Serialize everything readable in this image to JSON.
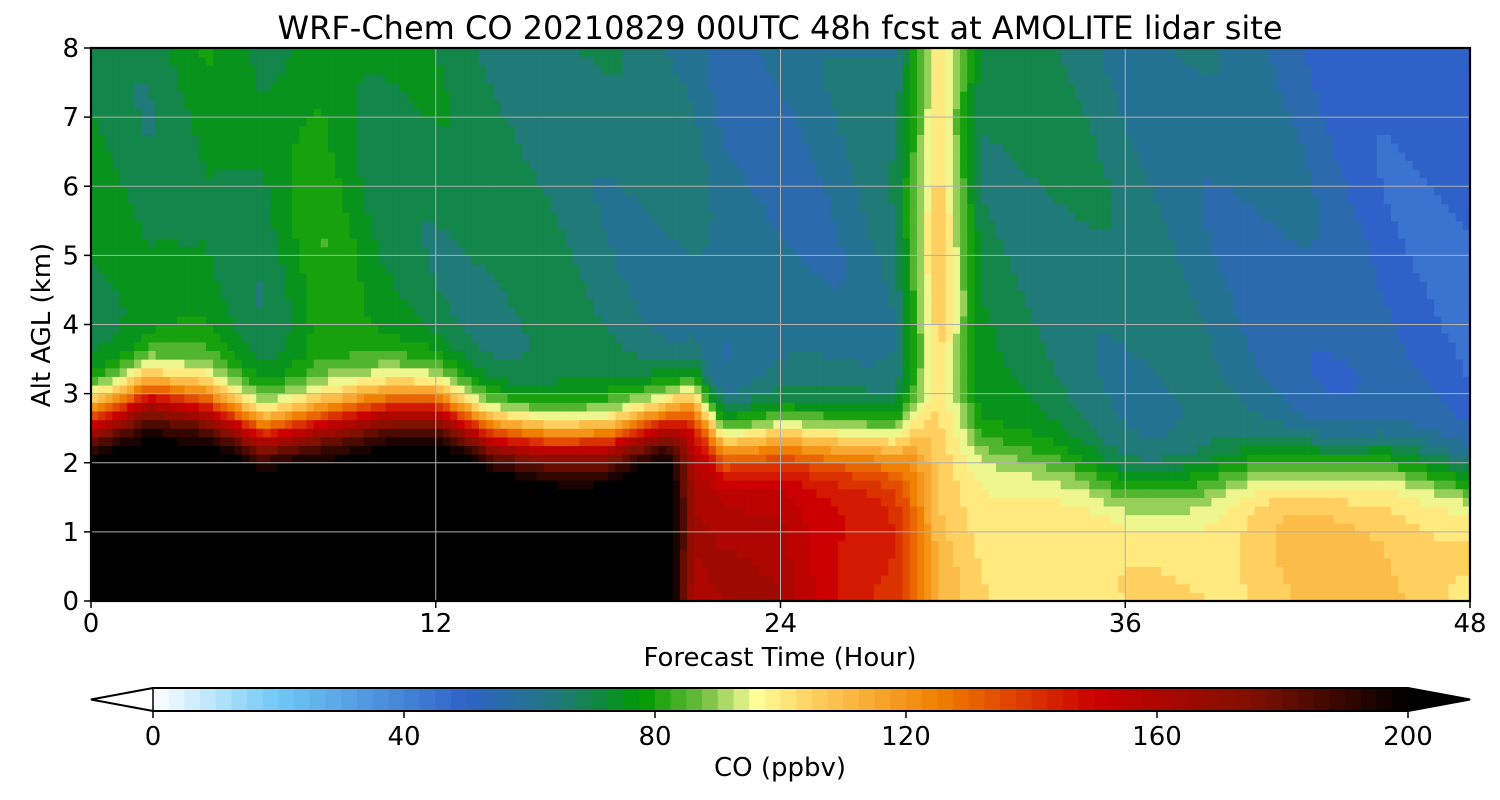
{
  "chart_data": {
    "type": "heatmap",
    "subtype": "filled-contour time-height cross section",
    "title": "WRF-Chem CO  20210829 00UTC 48h fcst at AMOLITE lidar site",
    "xlabel": "Forecast Time (Hour)",
    "ylabel": "Alt AGL (km)",
    "xlim": [
      0,
      48
    ],
    "ylim": [
      0,
      8
    ],
    "xticks": [
      0,
      12,
      24,
      36,
      48
    ],
    "yticks": [
      0,
      1,
      2,
      3,
      4,
      5,
      6,
      7,
      8
    ],
    "grid": true,
    "colorbar": {
      "label": "CO  (ppbv)",
      "range": [
        0,
        200
      ],
      "ticks": [
        0,
        40,
        80,
        120,
        160,
        200
      ],
      "extend": "both",
      "orientation": "horizontal",
      "stops": [
        {
          "v": 0,
          "c": "#ffffff"
        },
        {
          "v": 20,
          "c": "#6ec8f5"
        },
        {
          "v": 50,
          "c": "#2f62c8"
        },
        {
          "v": 65,
          "c": "#1f7a78"
        },
        {
          "v": 78,
          "c": "#009a00"
        },
        {
          "v": 88,
          "c": "#74c042"
        },
        {
          "v": 96,
          "c": "#ffff99"
        },
        {
          "v": 105,
          "c": "#ffd060"
        },
        {
          "v": 125,
          "c": "#f08000"
        },
        {
          "v": 150,
          "c": "#cc0000"
        },
        {
          "v": 175,
          "c": "#801000"
        },
        {
          "v": 200,
          "c": "#000000"
        }
      ]
    },
    "x_hours": [
      0,
      2,
      4,
      6,
      8,
      10,
      12,
      14,
      16,
      18,
      20,
      21,
      22,
      24,
      26,
      28,
      29.5,
      31,
      33,
      36,
      39,
      42,
      45,
      48
    ],
    "boundary_layer_top_km": [
      2.6,
      3.0,
      2.8,
      2.4,
      2.6,
      2.8,
      2.8,
      2.4,
      2.3,
      2.3,
      2.6,
      2.9,
      2.3,
      2.4,
      2.3,
      2.3,
      2.7,
      2.3,
      2.0,
      1.6,
      1.8,
      2.0,
      2.1,
      1.7
    ],
    "boundary_layer_co_ppbv": [
      215,
      215,
      215,
      215,
      215,
      215,
      215,
      215,
      215,
      215,
      215,
      160,
      160,
      162,
      150,
      140,
      108,
      103,
      101,
      100,
      104,
      108,
      110,
      104
    ],
    "free_troposphere_co_ppbv": [
      72,
      70,
      75,
      70,
      80,
      72,
      70,
      68,
      67,
      65,
      63,
      62,
      58,
      58,
      60,
      65,
      105,
      70,
      68,
      64,
      60,
      56,
      50,
      48
    ]
  }
}
